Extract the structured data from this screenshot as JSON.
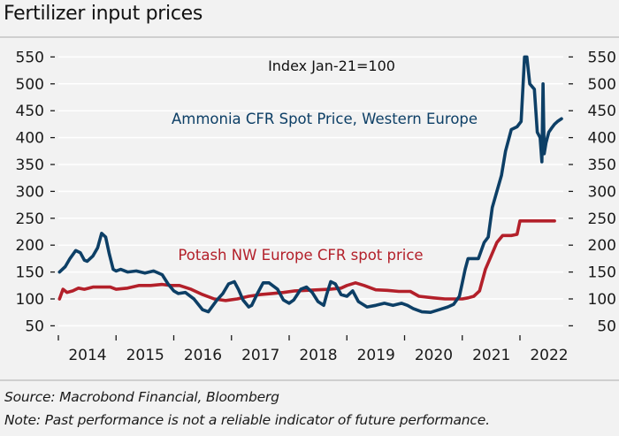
{
  "title": "Fertilizer input prices",
  "footer": {
    "source": "Source: Macrobond Financial, Bloomberg",
    "note": "Note: Past performance is not a reliable indicator of future performance."
  },
  "chart_data": {
    "type": "line",
    "title": "Fertilizer input prices",
    "subtitle": "Index Jan-21=100",
    "xlabel": "",
    "ylabel": "",
    "ylim": [
      50,
      550
    ],
    "xlim": [
      2014.0,
      2022.8
    ],
    "yticks": [
      50,
      100,
      150,
      200,
      250,
      300,
      350,
      400,
      450,
      500,
      550
    ],
    "ytick_labels": [
      "50",
      "100",
      "150",
      "200",
      "250",
      "300",
      "350",
      "400",
      "450",
      "500",
      "550"
    ],
    "xticks": [
      2014,
      2015,
      2016,
      2017,
      2018,
      2019,
      2020,
      2021,
      2022
    ],
    "xtick_labels": [
      "2014",
      "2015",
      "2016",
      "2017",
      "2018",
      "2019",
      "2020",
      "2021",
      "2022"
    ],
    "grid": true,
    "axes": "left-and-right",
    "colors": {
      "ammonia": "#0d3f66",
      "potash": "#b3202a"
    },
    "annotations": [
      {
        "text": "Index Jan-21=100",
        "color": "#111111",
        "near": "top-center"
      },
      {
        "text": "Ammonia CFR Spot Price, Western Europe",
        "color": "#0d3f66",
        "series": "Ammonia CFR Spot Price, Western Europe"
      },
      {
        "text": "Potash NW Europe CFR spot price",
        "color": "#b3202a",
        "series": "Potash NW Europe CFR spot price"
      }
    ],
    "series": [
      {
        "name": "Ammonia CFR Spot Price, Western Europe",
        "color": "#0d3f66",
        "x": [
          2014.02,
          2014.12,
          2014.2,
          2014.3,
          2014.38,
          2014.45,
          2014.5,
          2014.6,
          2014.68,
          2014.75,
          2014.82,
          2014.88,
          2014.95,
          2015.0,
          2015.08,
          2015.2,
          2015.35,
          2015.5,
          2015.65,
          2015.8,
          2015.9,
          2016.0,
          2016.08,
          2016.2,
          2016.35,
          2016.5,
          2016.6,
          2016.75,
          2016.85,
          2016.95,
          2017.05,
          2017.12,
          2017.2,
          2017.3,
          2017.35,
          2017.45,
          2017.55,
          2017.65,
          2017.8,
          2017.9,
          2018.0,
          2018.08,
          2018.2,
          2018.3,
          2018.4,
          2018.5,
          2018.6,
          2018.65,
          2018.72,
          2018.8,
          2018.9,
          2019.0,
          2019.1,
          2019.2,
          2019.35,
          2019.5,
          2019.65,
          2019.8,
          2019.95,
          2020.05,
          2020.15,
          2020.3,
          2020.45,
          2020.6,
          2020.75,
          2020.85,
          2020.95,
          2021.0,
          2021.05,
          2021.1,
          2021.2,
          2021.28,
          2021.38,
          2021.45,
          2021.52,
          2021.6,
          2021.68,
          2021.75,
          2021.85,
          2021.95,
          2022.02,
          2022.08,
          2022.12,
          2022.17,
          2022.25,
          2022.3,
          2022.35,
          2022.38,
          2022.4,
          2022.42,
          2022.45,
          2022.5,
          2022.55,
          2022.6,
          2022.65,
          2022.72
        ],
        "y": [
          150,
          160,
          175,
          190,
          186,
          172,
          170,
          180,
          195,
          222,
          215,
          185,
          155,
          152,
          155,
          150,
          152,
          148,
          152,
          145,
          128,
          115,
          110,
          112,
          100,
          80,
          76,
          98,
          110,
          128,
          132,
          118,
          98,
          85,
          88,
          110,
          130,
          130,
          118,
          98,
          92,
          98,
          118,
          122,
          112,
          95,
          88,
          108,
          132,
          128,
          108,
          105,
          115,
          95,
          85,
          88,
          92,
          88,
          92,
          88,
          82,
          76,
          75,
          80,
          85,
          90,
          105,
          130,
          155,
          175,
          175,
          175,
          205,
          215,
          270,
          300,
          330,
          375,
          415,
          420,
          430,
          550,
          550,
          500,
          490,
          410,
          400,
          355,
          500,
          370,
          390,
          410,
          418,
          425,
          430,
          435
        ]
      },
      {
        "name": "Potash NW Europe CFR spot price",
        "color": "#b3202a",
        "x": [
          2014.02,
          2014.08,
          2014.15,
          2014.25,
          2014.35,
          2014.45,
          2014.6,
          2014.75,
          2014.9,
          2015.0,
          2015.2,
          2015.4,
          2015.6,
          2015.8,
          2015.95,
          2016.1,
          2016.3,
          2016.5,
          2016.7,
          2016.9,
          2017.1,
          2017.3,
          2017.5,
          2017.7,
          2017.9,
          2018.1,
          2018.3,
          2018.5,
          2018.7,
          2018.9,
          2019.0,
          2019.15,
          2019.3,
          2019.5,
          2019.7,
          2019.9,
          2020.1,
          2020.25,
          2020.5,
          2020.7,
          2020.9,
          2021.0,
          2021.1,
          2021.2,
          2021.3,
          2021.4,
          2021.5,
          2021.6,
          2021.7,
          2021.85,
          2021.95,
          2022.0,
          2022.05,
          2022.2,
          2022.4,
          2022.6
        ],
        "y": [
          100,
          118,
          112,
          115,
          120,
          118,
          122,
          122,
          122,
          118,
          120,
          125,
          125,
          127,
          125,
          125,
          118,
          108,
          100,
          97,
          100,
          105,
          108,
          110,
          112,
          115,
          116,
          117,
          118,
          120,
          125,
          130,
          125,
          117,
          116,
          114,
          114,
          105,
          102,
          100,
          100,
          100,
          102,
          105,
          115,
          155,
          180,
          205,
          218,
          218,
          220,
          245,
          245,
          245,
          245,
          245
        ]
      }
    ]
  }
}
